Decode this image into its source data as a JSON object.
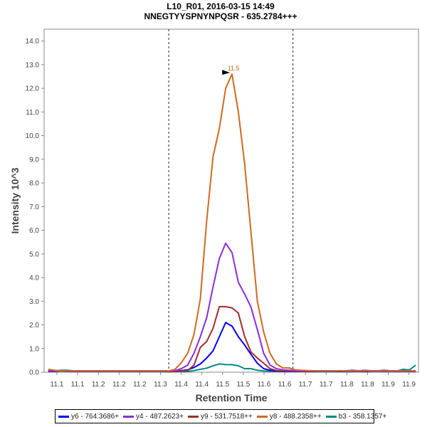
{
  "chart_data": {
    "type": "line",
    "title": "L10_R01, 2016-03-15 14:49",
    "subtitle": "NNEGTYYSPNYNPQSR - 635.2784+++",
    "xlabel": "Retention Time",
    "ylabel": "Intensity 10^3",
    "xlim": [
      11.019,
      11.923
    ],
    "ylim": [
      0,
      14.5
    ],
    "x_start": 11.029,
    "x_step": 0.0153,
    "x_ticks": [
      11.05,
      11.1,
      11.15,
      11.2,
      11.25,
      11.3,
      11.35,
      11.4,
      11.45,
      11.5,
      11.55,
      11.6,
      11.65,
      11.7,
      11.75,
      11.8,
      11.85,
      11.9
    ],
    "x_tick_labels": [
      "11.1",
      "11.1",
      "11.2",
      "11.2",
      "11.2",
      "11.3",
      "11.4",
      "11.4",
      "11.5",
      "11.5",
      "11.6",
      "11.6",
      "11.7",
      "11.7",
      "11.8",
      "11.8",
      "11.9",
      "11.9"
    ],
    "y_ticks": [
      0,
      1,
      2,
      3,
      4,
      5,
      6,
      7,
      8,
      9,
      10,
      11,
      12,
      13,
      14
    ],
    "y_tick_labels": [
      "0.0",
      "1.0",
      "2.0",
      "3.0",
      "4.0",
      "5.0",
      "6.0",
      "7.0",
      "8.0",
      "9.0",
      "10.0",
      "11.0",
      "12.0",
      "13.0",
      "14.0"
    ],
    "integration_boundaries": [
      11.32,
      11.62
    ],
    "peak_annotation": {
      "label": "11.5",
      "x": 11.473,
      "y": 12.6,
      "color": "#d2691e"
    },
    "legend_position": "bottom",
    "series": [
      {
        "name": "y6 - 764.3686+",
        "color": "#0000ff",
        "values": [
          0.04,
          0.04,
          0.05,
          0.04,
          0.04,
          0.04,
          0.04,
          0.04,
          0.04,
          0.04,
          0.04,
          0.04,
          0.04,
          0.04,
          0.04,
          0.04,
          0.04,
          0.04,
          0.04,
          0.02,
          0.04,
          0.07,
          0.1,
          0.2,
          0.35,
          0.6,
          0.9,
          1.5,
          2.1,
          1.95,
          1.5,
          1.15,
          0.75,
          0.38,
          0.15,
          0.08,
          0.05,
          0.04,
          0.04,
          0.03,
          0.03,
          0.03,
          0.04,
          0.04,
          0.04,
          0.04,
          0.04,
          0.04,
          0.04,
          0.04,
          0.04,
          0.04,
          0.04,
          0.04,
          0.04,
          0.04,
          0.04,
          0.04,
          0.04
        ]
      },
      {
        "name": "y4 - 487.2623+",
        "color": "#8a2be2",
        "values": [
          0.06,
          0.06,
          0.06,
          0.06,
          0.06,
          0.06,
          0.06,
          0.06,
          0.06,
          0.06,
          0.06,
          0.06,
          0.06,
          0.06,
          0.06,
          0.06,
          0.06,
          0.06,
          0.06,
          0.05,
          0.06,
          0.15,
          0.3,
          0.8,
          1.5,
          2.3,
          3.6,
          4.8,
          5.45,
          5.06,
          3.8,
          3.3,
          2.75,
          1.8,
          0.8,
          0.3,
          0.15,
          0.1,
          0.08,
          0.06,
          0.05,
          0.05,
          0.06,
          0.06,
          0.06,
          0.06,
          0.06,
          0.06,
          0.08,
          0.06,
          0.08,
          0.06,
          0.06,
          0.08,
          0.06,
          0.06,
          0.06,
          0.06,
          0.06
        ]
      },
      {
        "name": "y9 - 531.7518++",
        "color": "#a52a2a",
        "values": [
          0.05,
          0.05,
          0.05,
          0.05,
          0.05,
          0.05,
          0.05,
          0.05,
          0.05,
          0.05,
          0.05,
          0.05,
          0.05,
          0.05,
          0.05,
          0.05,
          0.05,
          0.05,
          0.05,
          0.03,
          0.03,
          0.05,
          0.07,
          0.3,
          1.05,
          1.3,
          1.85,
          2.77,
          2.77,
          2.72,
          2.5,
          1.5,
          0.85,
          0.6,
          0.38,
          0.15,
          0.07,
          0.05,
          0.05,
          0.04,
          0.04,
          0.04,
          0.05,
          0.05,
          0.05,
          0.05,
          0.05,
          0.05,
          0.05,
          0.05,
          0.05,
          0.05,
          0.05,
          0.05,
          0.05,
          0.05,
          0.05,
          0.05,
          0.05
        ]
      },
      {
        "name": "y8 - 488.2358++",
        "color": "#d2691e",
        "values": [
          0.12,
          0.08,
          0.05,
          0.05,
          0.05,
          0.05,
          0.05,
          0.05,
          0.05,
          0.05,
          0.05,
          0.05,
          0.05,
          0.05,
          0.05,
          0.05,
          0.05,
          0.05,
          0.05,
          0.05,
          0.12,
          0.4,
          0.8,
          1.6,
          3.1,
          6.4,
          9.1,
          10.3,
          12.0,
          12.6,
          11.0,
          8.8,
          5.9,
          3.0,
          1.7,
          0.8,
          0.35,
          0.18,
          0.18,
          0.1,
          0.08,
          0.07,
          0.06,
          0.05,
          0.05,
          0.05,
          0.07,
          0.05,
          0.05,
          0.05,
          0.07,
          0.05,
          0.05,
          0.05,
          0.05,
          0.05,
          0.05,
          0.05,
          0.05
        ]
      },
      {
        "name": "b3 - 358.1357+",
        "color": "#008b8b",
        "values": [
          0.05,
          0.05,
          0.08,
          0.08,
          0.05,
          0.05,
          0.05,
          0.05,
          0.05,
          0.05,
          0.05,
          0.05,
          0.05,
          0.05,
          0.05,
          0.05,
          0.05,
          0.05,
          0.04,
          0.02,
          0.02,
          0.02,
          0.03,
          0.07,
          0.12,
          0.17,
          0.27,
          0.35,
          0.32,
          0.32,
          0.27,
          0.15,
          0.15,
          0.08,
          0.05,
          0.04,
          0.03,
          0.03,
          0.03,
          0.03,
          0.03,
          0.03,
          0.03,
          0.03,
          0.03,
          0.03,
          0.03,
          0.03,
          0.03,
          0.03,
          0.03,
          0.03,
          0.05,
          0.03,
          0.05,
          0.05,
          0.12,
          0.1,
          0.3
        ]
      }
    ]
  }
}
